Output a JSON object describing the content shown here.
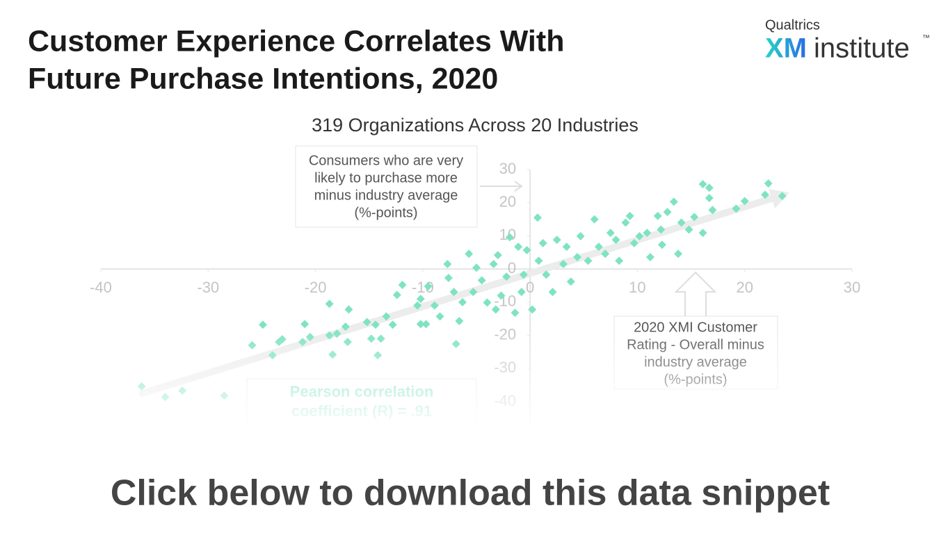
{
  "chart_data": {
    "type": "scatter",
    "title": [
      "Customer Experience Correlates With",
      "Future Purchase Intentions, 2020"
    ],
    "subtitle": "319 Organizations Across 20 Industries",
    "ylabel": [
      "Consumers who are very",
      "likely to purchase more",
      "minus industry average",
      "(%-points)"
    ],
    "xlabel": [
      "2020 XMI Customer",
      "Rating - Overall minus",
      "industry average",
      "(%-points)"
    ],
    "annotation": [
      "Pearson correlation",
      "coefficient (R) = .91"
    ],
    "color": "#7fe3c3",
    "xlim": [
      -40,
      30
    ],
    "xticks": [
      -40,
      -30,
      -20,
      -10,
      0,
      10,
      20,
      30
    ],
    "ylim": [
      -40,
      30
    ],
    "yticks": [
      -40,
      -30,
      -20,
      -10,
      0,
      10,
      20,
      30
    ],
    "x": [
      -36.2,
      -34.0,
      -32.4,
      -28.5,
      -24.9,
      -25.9,
      -24.0,
      -23.4,
      -23.1,
      -21.0,
      -21.2,
      -20.5,
      -18.7,
      -18.7,
      -18.4,
      -18.0,
      -17.2,
      -17.0,
      -16.9,
      -15.2,
      -14.8,
      -14.2,
      -13.9,
      -14.4,
      -13.4,
      -12.8,
      -12.4,
      -11.9,
      -10.5,
      -10.2,
      -9.7,
      -10.2,
      -9.5,
      -8.9,
      -8.4,
      -7.7,
      -7.6,
      -7.1,
      -6.9,
      -6.6,
      -6.3,
      -5.7,
      -5.3,
      -5.0,
      -4.5,
      -4.0,
      -3.4,
      -3.2,
      -3.0,
      -2.7,
      -2.2,
      -1.9,
      -1.4,
      -1.1,
      -0.8,
      -0.6,
      -0.3,
      0.2,
      0.7,
      0.8,
      1.2,
      1.5,
      2.1,
      2.5,
      3.1,
      3.4,
      3.8,
      4.4,
      4.7,
      5.4,
      6.0,
      6.4,
      7.0,
      7.5,
      8.0,
      8.3,
      8.9,
      9.3,
      9.7,
      10.2,
      10.9,
      11.2,
      11.9,
      12.2,
      12.3,
      12.8,
      13.4,
      13.8,
      14.1,
      14.8,
      15.3,
      16.1,
      16.1,
      16.7,
      17.0,
      16.7,
      19.2,
      20.0,
      21.9,
      22.2,
      23.5
    ],
    "y": [
      -35.4,
      -38.6,
      -36.7,
      -38.2,
      -16.8,
      -23.0,
      -26.0,
      -22.0,
      -21.2,
      -16.6,
      -22.0,
      -20.5,
      -10.5,
      -20.0,
      -25.8,
      -19.5,
      -17.4,
      -22.0,
      -12.2,
      -16.0,
      -21.0,
      -26.0,
      -21.0,
      -16.8,
      -14.3,
      -16.8,
      -7.8,
      -4.8,
      -11.0,
      -16.6,
      -16.6,
      -9.0,
      -5.2,
      -11.0,
      -14.3,
      1.5,
      -2.7,
      -6.9,
      -22.6,
      -15.7,
      -10.0,
      4.6,
      -6.9,
      0.4,
      -3.4,
      -10.1,
      1.5,
      -12.2,
      4.2,
      -8.0,
      -2.3,
      9.6,
      -13.2,
      6.7,
      -6.9,
      -1.7,
      5.7,
      -12.2,
      15.5,
      2.5,
      7.8,
      -1.7,
      -6.9,
      8.8,
      1.5,
      6.7,
      -3.8,
      3.6,
      9.9,
      2.5,
      15.0,
      6.7,
      4.6,
      10.9,
      8.8,
      2.5,
      14.0,
      16.0,
      7.8,
      9.9,
      10.9,
      3.6,
      16.0,
      11.9,
      7.3,
      17.2,
      20.3,
      4.6,
      14.0,
      11.9,
      15.7,
      10.9,
      25.6,
      21.4,
      17.8,
      24.5,
      18.2,
      20.5,
      22.4,
      25.8,
      22.0
    ]
  },
  "logo": {
    "brand": "Qualtrics",
    "mark": "XM",
    "word": "institute",
    "trademark": "™"
  },
  "call_to_action": "Click below to download this data snippet"
}
